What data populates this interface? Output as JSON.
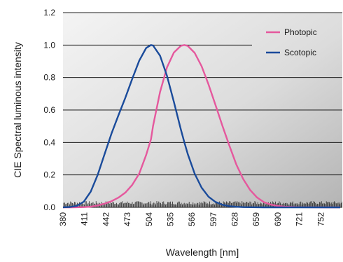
{
  "chart_data": {
    "type": "line",
    "xlabel": "Wavelength [nm]",
    "ylabel": "CIE Spectral luminous intensity",
    "xlim": [
      380,
      783
    ],
    "ylim": [
      0,
      1.2
    ],
    "x_ticks": [
      380,
      411,
      442,
      473,
      504,
      535,
      566,
      597,
      628,
      659,
      690,
      721,
      752
    ],
    "y_ticks": [
      "0.0",
      "0.2",
      "0.4",
      "0.6",
      "0.8",
      "1.0",
      "1.2"
    ],
    "grid": "horizontal",
    "legend_position": "top-right",
    "x": [
      380,
      390,
      400,
      410,
      420,
      430,
      440,
      450,
      460,
      470,
      480,
      490,
      500,
      507,
      510,
      520,
      530,
      540,
      550,
      555,
      560,
      570,
      580,
      590,
      600,
      610,
      620,
      630,
      640,
      650,
      660,
      670,
      680,
      690,
      700,
      720,
      740,
      760,
      780
    ],
    "series": [
      {
        "name": "Photopic",
        "color": "#e5589d",
        "values": [
          0.0,
          0.0001,
          0.0004,
          0.0012,
          0.004,
          0.0116,
          0.023,
          0.038,
          0.06,
          0.091,
          0.139,
          0.208,
          0.323,
          0.42,
          0.503,
          0.71,
          0.862,
          0.954,
          0.995,
          1.0,
          0.995,
          0.952,
          0.87,
          0.757,
          0.631,
          0.503,
          0.381,
          0.265,
          0.175,
          0.107,
          0.061,
          0.032,
          0.017,
          0.0082,
          0.0041,
          0.001,
          0.0003,
          0.0001,
          0.0
        ]
      },
      {
        "name": "Scotopic",
        "color": "#1a4b9b",
        "values": [
          0.0006,
          0.0022,
          0.0093,
          0.0348,
          0.0966,
          0.1998,
          0.3281,
          0.455,
          0.567,
          0.676,
          0.793,
          0.904,
          0.982,
          1.0,
          0.997,
          0.935,
          0.811,
          0.65,
          0.481,
          0.402,
          0.3288,
          0.2076,
          0.1212,
          0.0655,
          0.0332,
          0.0159,
          0.0074,
          0.0033,
          0.0015,
          0.0007,
          0.0003,
          0.0001,
          0.0001,
          0.0,
          0.0,
          0.0,
          0.0,
          0.0,
          0.0
        ]
      }
    ]
  }
}
